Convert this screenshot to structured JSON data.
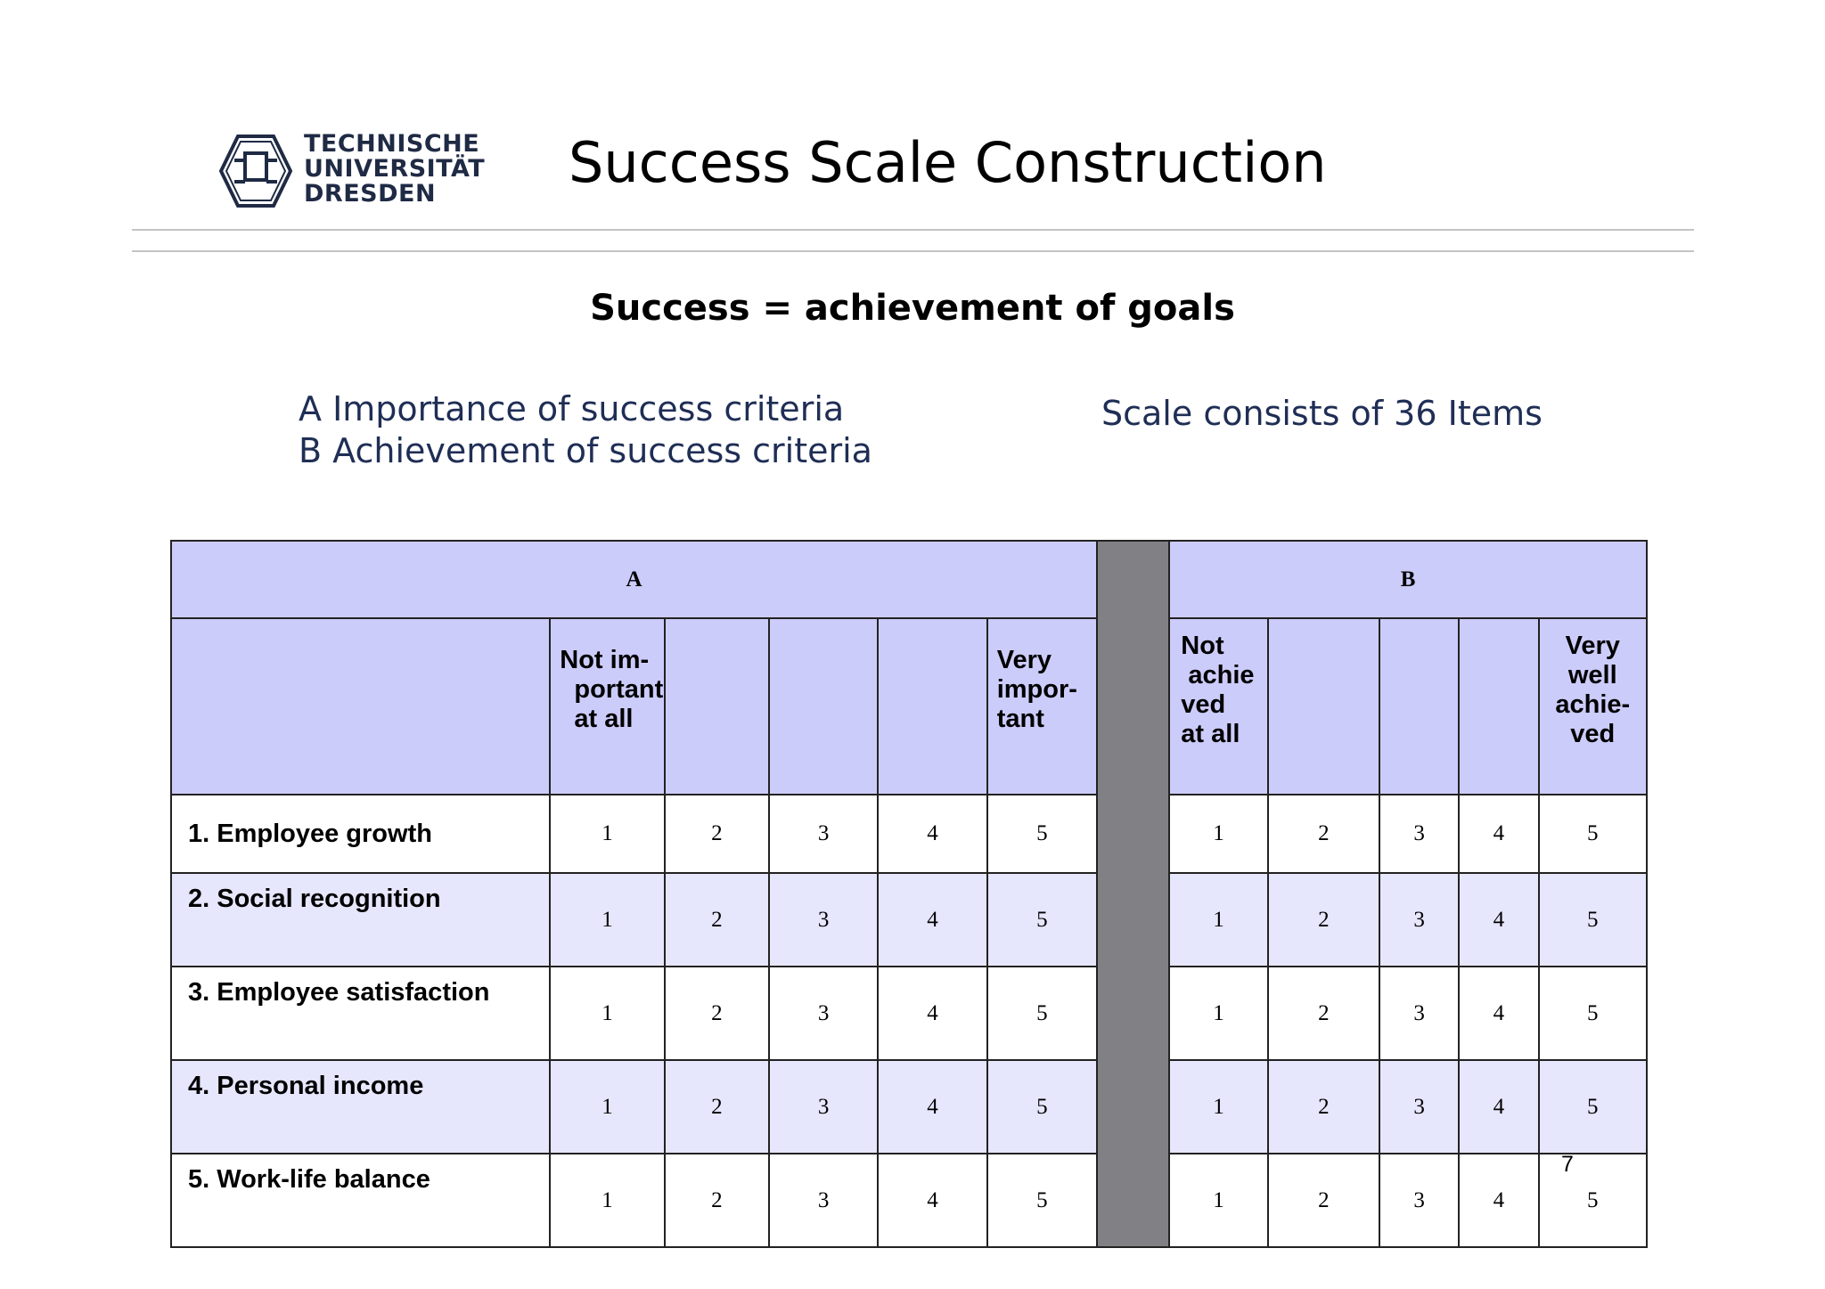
{
  "logo": {
    "line1": "TECHNISCHE",
    "line2": "UNIVERSITÄT",
    "line3": "DRESDEN",
    "icon": "tu-dresden-seal-icon"
  },
  "title": "Success Scale Construction",
  "subtitle": "Success = achievement of goals",
  "criteria": {
    "a": "A Importance of success criteria",
    "b": "B Achievement of success criteria"
  },
  "scale_note": "Scale consists of 36 Items",
  "table": {
    "group_a": "A",
    "group_b": "B",
    "a_low_anchor": "Not im-\n  portant\n  at all",
    "a_high_anchor": "Very\nimpor-\ntant",
    "b_low_anchor": "Not\n achie\nved\nat all",
    "b_high_anchor": "Very\nwell\nachie-\nved",
    "rows": [
      {
        "label": "1. Employee growth",
        "a": [
          "1",
          "2",
          "3",
          "4",
          "5"
        ],
        "b": [
          "1",
          "2",
          "3",
          "4",
          "5"
        ]
      },
      {
        "label": "2. Social recognition",
        "a": [
          "1",
          "2",
          "3",
          "4",
          "5"
        ],
        "b": [
          "1",
          "2",
          "3",
          "4",
          "5"
        ]
      },
      {
        "label": "3. Employee satisfaction",
        "a": [
          "1",
          "2",
          "3",
          "4",
          "5"
        ],
        "b": [
          "1",
          "2",
          "3",
          "4",
          "5"
        ]
      },
      {
        "label": "4. Personal income",
        "a": [
          "1",
          "2",
          "3",
          "4",
          "5"
        ],
        "b": [
          "1",
          "2",
          "3",
          "4",
          "5"
        ]
      },
      {
        "label": "5. Work-life balance",
        "a": [
          "1",
          "2",
          "3",
          "4",
          "5"
        ],
        "b": [
          "1",
          "2",
          "3",
          "4",
          "5"
        ]
      }
    ]
  },
  "page_number": "7",
  "colors": {
    "header_fill": "#ccccfb",
    "alt_row_fill": "#e6e6fd",
    "divider_fill": "#818185",
    "text_blue": "#1f2e55"
  }
}
